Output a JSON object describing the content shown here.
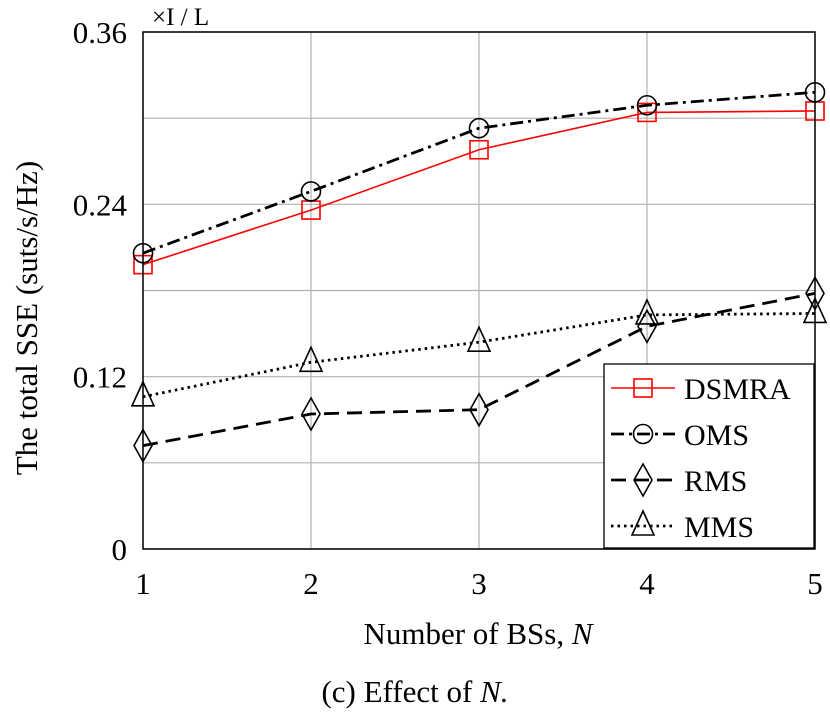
{
  "chart_data": {
    "type": "line",
    "xlabel": "Number of BSs, ",
    "xlabel_var": "N",
    "ylabel": "The total SSE (suts/s/Hz)",
    "y_multiplier": "×I / L",
    "caption": "(c) Effect of ",
    "caption_var": "N.",
    "x": [
      1,
      2,
      3,
      4,
      5
    ],
    "x_tick_labels": [
      "1",
      "2",
      "3",
      "4",
      "5"
    ],
    "xlim": [
      1,
      5
    ],
    "ylim": [
      0,
      0.36
    ],
    "y_ticks": [
      0,
      0.12,
      0.24,
      0.36
    ],
    "y_tick_labels": [
      "0",
      "0.12",
      "0.24",
      "0.36"
    ],
    "grid": true,
    "legend_position": "bottom-right",
    "series": [
      {
        "name": "DSMRA",
        "values": [
          0.198,
          0.236,
          0.278,
          0.304,
          0.305
        ],
        "color": "#ff0000",
        "marker": "square",
        "dash": "solid"
      },
      {
        "name": "OMS",
        "values": [
          0.206,
          0.249,
          0.293,
          0.309,
          0.318
        ],
        "color": "#000000",
        "marker": "circle",
        "dash": "dashdot"
      },
      {
        "name": "RMS",
        "values": [
          0.072,
          0.094,
          0.097,
          0.155,
          0.178
        ],
        "color": "#000000",
        "marker": "diamond",
        "dash": "dashed"
      },
      {
        "name": "MMS",
        "values": [
          0.106,
          0.13,
          0.144,
          0.163,
          0.164
        ],
        "color": "#000000",
        "marker": "triangle",
        "dash": "dotted"
      }
    ]
  }
}
